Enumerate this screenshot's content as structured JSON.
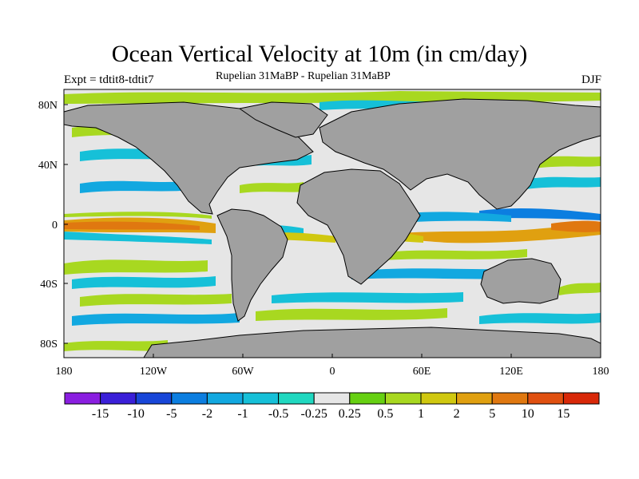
{
  "title": "Ocean Vertical Velocity at 10m (in cm/day)",
  "experiment": "Expt = tdtit8-tdtit7",
  "subtitle": "Rupelian  31MaBP - Rupelian  31MaBP",
  "season": "DJF",
  "map": {
    "land_color": "#a0a0a0",
    "ocean_neutral_color": "#e6e6e6",
    "lon_ticks": [
      "180",
      "120W",
      "60W",
      "0",
      "60E",
      "120E",
      "180"
    ],
    "lat_ticks": [
      "80N",
      "40N",
      "0",
      "40S",
      "80S"
    ]
  },
  "colorbar": {
    "labels": [
      "-15",
      "-10",
      "-5",
      "-2",
      "-1",
      "-0.5",
      "-0.25",
      "0.25",
      "0.5",
      "1",
      "2",
      "5",
      "10",
      "15"
    ],
    "colors": [
      "#8a1ee0",
      "#3a1fd8",
      "#1846d8",
      "#0c7ee0",
      "#12a8e0",
      "#16c0d8",
      "#20d8c0",
      "#e6e6e6",
      "#66d012",
      "#a8d820",
      "#d0c810",
      "#e0a010",
      "#e07810",
      "#e05010",
      "#d82808"
    ]
  }
}
